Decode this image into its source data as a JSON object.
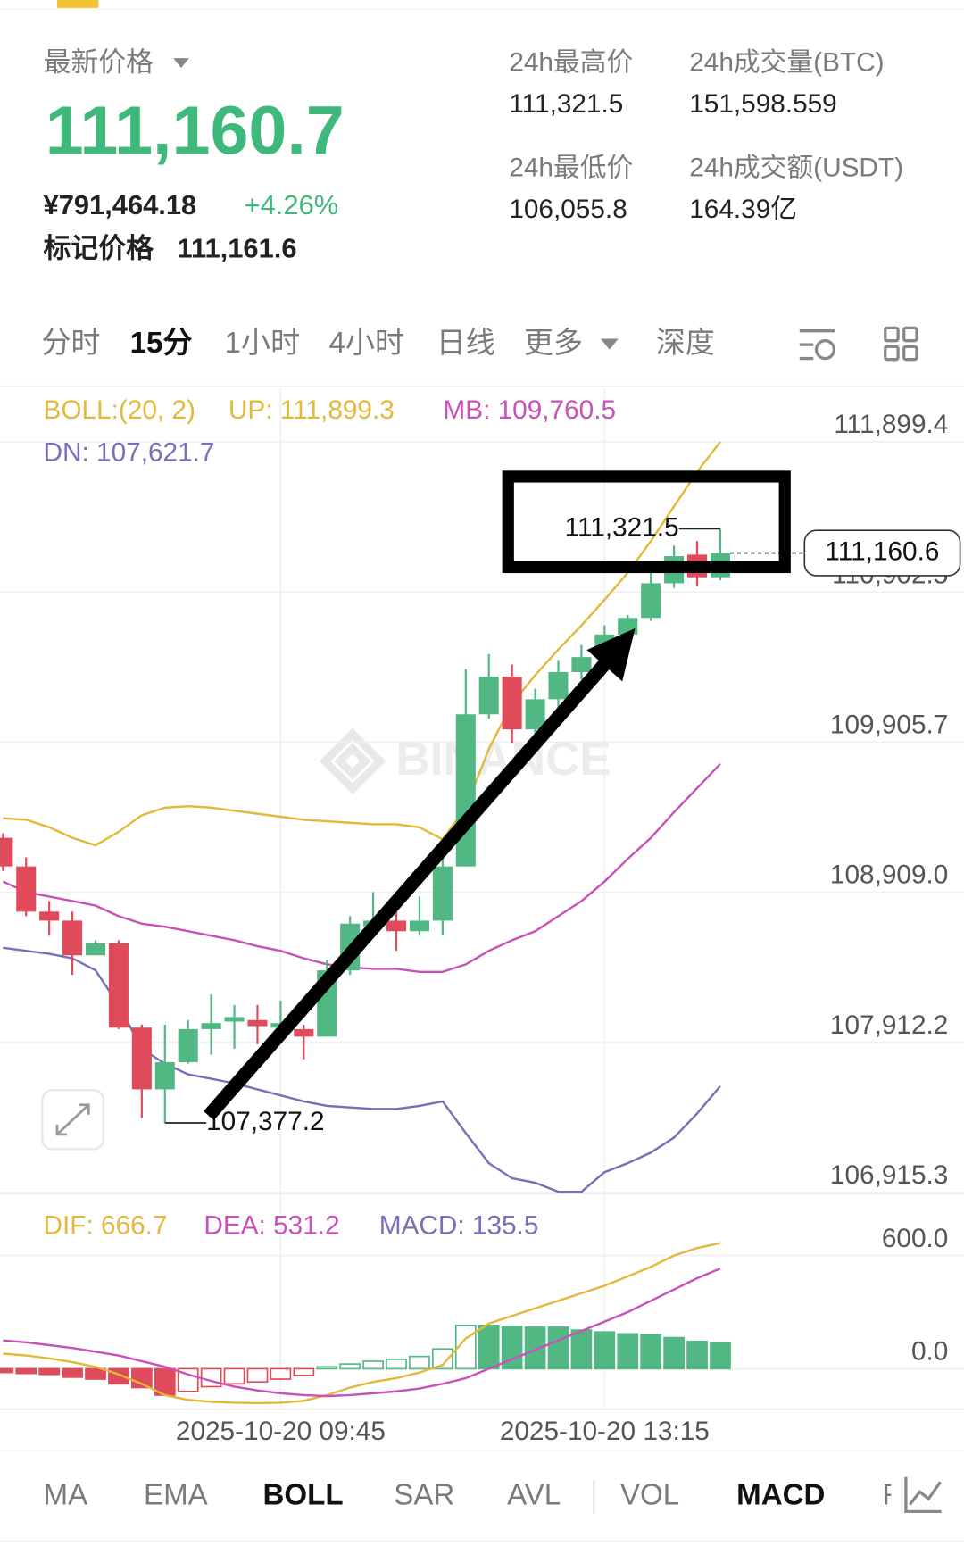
{
  "header": {
    "title": "最新价格",
    "price": "111,160.7",
    "cny_price": "¥791,464.18",
    "change": "+4.26%",
    "mark_price_label": "标记价格",
    "mark_price": "111,161.6"
  },
  "stats": [
    {
      "label": "24h最高价",
      "value": "111,321.5"
    },
    {
      "label": "24h成交量(BTC)",
      "value": "151,598.559"
    },
    {
      "label": "24h最低价",
      "value": "106,055.8"
    },
    {
      "label": "24h成交额(USDT)",
      "value": "164.39亿"
    }
  ],
  "tabs": [
    "分时",
    "15分",
    "1小时",
    "4小时",
    "日线",
    "更多",
    "深度"
  ],
  "chart_data": [
    {
      "type": "candlestick",
      "watermark": "BINANCE",
      "categories": [
        null,
        null,
        null,
        null,
        null,
        null,
        null,
        null,
        null,
        null,
        null,
        null,
        "2025-10-20 09:45",
        null,
        null,
        null,
        null,
        null,
        null,
        null,
        null,
        null,
        null,
        null,
        null,
        null,
        "2025-10-20 13:15",
        null,
        null,
        null,
        null,
        null
      ],
      "open": [
        109270,
        109080,
        108780,
        108720,
        108490,
        108570,
        108010,
        107600,
        107780,
        108000,
        108050,
        108060,
        108010,
        108000,
        107950,
        108390,
        108680,
        108720,
        108650,
        108720,
        109080,
        110090,
        110340,
        109990,
        110190,
        110370,
        110470,
        110620,
        110730,
        110960,
        111150,
        111000
      ],
      "high": [
        109300,
        109140,
        108850,
        108780,
        108590,
        108590,
        108030,
        108030,
        108060,
        108230,
        108160,
        108160,
        108190,
        108030,
        108460,
        108750,
        108910,
        108780,
        108880,
        109210,
        110390,
        110490,
        110420,
        110260,
        110450,
        110550,
        110680,
        110750,
        111040,
        111210,
        111240,
        111321.5
      ],
      "low": [
        109050,
        108750,
        108620,
        108360,
        108490,
        108000,
        107410,
        107377.2,
        107770,
        107830,
        107870,
        107900,
        107960,
        107800,
        107950,
        108360,
        108620,
        108520,
        108620,
        108620,
        109080,
        110060,
        109900,
        109960,
        110130,
        110320,
        110420,
        110490,
        110710,
        110930,
        110940,
        110980
      ],
      "close": [
        109080,
        108780,
        108720,
        108490,
        108570,
        108010,
        107600,
        107780,
        108000,
        108040,
        108080,
        108020,
        108040,
        107950,
        108390,
        108700,
        108720,
        108650,
        108720,
        109080,
        110090,
        110340,
        109990,
        110190,
        110370,
        110470,
        110620,
        110730,
        110960,
        111140,
        111000,
        111160.6
      ],
      "up_color": "#52b883",
      "down_color": "#e04b5b",
      "indicator_label": "BOLL:(20, 2)",
      "indicator_color": "#e2b93b",
      "overlays": [
        {
          "name": "UP: 111,899.3",
          "color": "#e2b93b",
          "values": [
            109400,
            109390,
            109340,
            109270,
            109220,
            109310,
            109420,
            109470,
            109480,
            109470,
            109450,
            109430,
            109410,
            109390,
            109380,
            109370,
            109360,
            109360,
            109340,
            109260,
            109470,
            109860,
            110160,
            110350,
            110520,
            110680,
            110850,
            111030,
            111240,
            111470,
            111700,
            111899.3
          ]
        },
        {
          "name": "MB: 109,760.5",
          "color": "#c852b7",
          "values": [
            108980,
            108910,
            108880,
            108850,
            108820,
            108750,
            108700,
            108680,
            108650,
            108620,
            108590,
            108550,
            108520,
            108470,
            108430,
            108410,
            108400,
            108400,
            108380,
            108380,
            108430,
            108520,
            108590,
            108650,
            108750,
            108850,
            108980,
            109130,
            109270,
            109440,
            109600,
            109760.5
          ]
        },
        {
          "name": "DN: 107,621.7",
          "color": "#7c6db8",
          "values": [
            108540,
            108520,
            108500,
            108470,
            108390,
            108160,
            107870,
            107770,
            107700,
            107670,
            107640,
            107600,
            107560,
            107520,
            107490,
            107480,
            107470,
            107470,
            107490,
            107520,
            107310,
            107110,
            107010,
            106980,
            106920,
            106920,
            107050,
            107110,
            107180,
            107280,
            107440,
            107621.7
          ]
        }
      ],
      "annotations": [
        {
          "value": 111321.5,
          "label": "111,321.5"
        },
        {
          "value": 107377.2,
          "label": "107,377.2"
        }
      ],
      "last_price": {
        "value": 111160.6,
        "label": "111,160.6"
      },
      "ylim": [
        106915.3,
        112250
      ],
      "yticks": [
        {
          "value": 111899.4,
          "label": "111,899.4"
        },
        {
          "value": 110902.5,
          "label": "110,902.5"
        },
        {
          "value": 109905.7,
          "label": "109,905.7"
        },
        {
          "value": 108909.0,
          "label": "108,909.0"
        },
        {
          "value": 107912.2,
          "label": "107,912.2"
        },
        {
          "value": 106915.3,
          "label": "106,915.3"
        }
      ],
      "grid": true
    },
    {
      "type": "macd",
      "series": [
        {
          "name": "DIF: 666.7",
          "color": "#e2b93b",
          "values": [
            80,
            70,
            55,
            35,
            10,
            -30,
            -80,
            -140,
            -165,
            -175,
            -180,
            -182,
            -180,
            -170,
            -140,
            -100,
            -70,
            -50,
            -20,
            20,
            160,
            240,
            280,
            320,
            360,
            400,
            440,
            490,
            540,
            600,
            640,
            666.7
          ]
        },
        {
          "name": "DEA: 531.2",
          "color": "#c852b7",
          "values": [
            150,
            140,
            125,
            110,
            90,
            70,
            40,
            10,
            -30,
            -65,
            -95,
            -115,
            -130,
            -140,
            -145,
            -140,
            -130,
            -120,
            -105,
            -80,
            -50,
            0,
            50,
            100,
            150,
            200,
            250,
            300,
            360,
            420,
            480,
            531.2
          ]
        }
      ],
      "histogram": {
        "name": "MACD: 135.5",
        "color": "#7c6db8",
        "up_color": "#52b883",
        "down_color": "#e04b5b",
        "values": [
          -20,
          -25,
          -30,
          -45,
          -55,
          -80,
          -100,
          -140,
          -120,
          -95,
          -80,
          -70,
          -55,
          -35,
          10,
          25,
          40,
          50,
          65,
          105,
          230,
          230,
          225,
          220,
          220,
          205,
          195,
          185,
          180,
          165,
          145,
          135.5
        ]
      },
      "ylim": [
        -209,
        924
      ],
      "yticks": [
        {
          "value": 600,
          "label": "600.0"
        },
        {
          "value": 0,
          "label": "0.0"
        }
      ],
      "grid": true
    }
  ],
  "indicator_tabs": [
    "MA",
    "EMA",
    "BOLL",
    "SAR",
    "AVL",
    "VOL",
    "MACD",
    "R"
  ]
}
